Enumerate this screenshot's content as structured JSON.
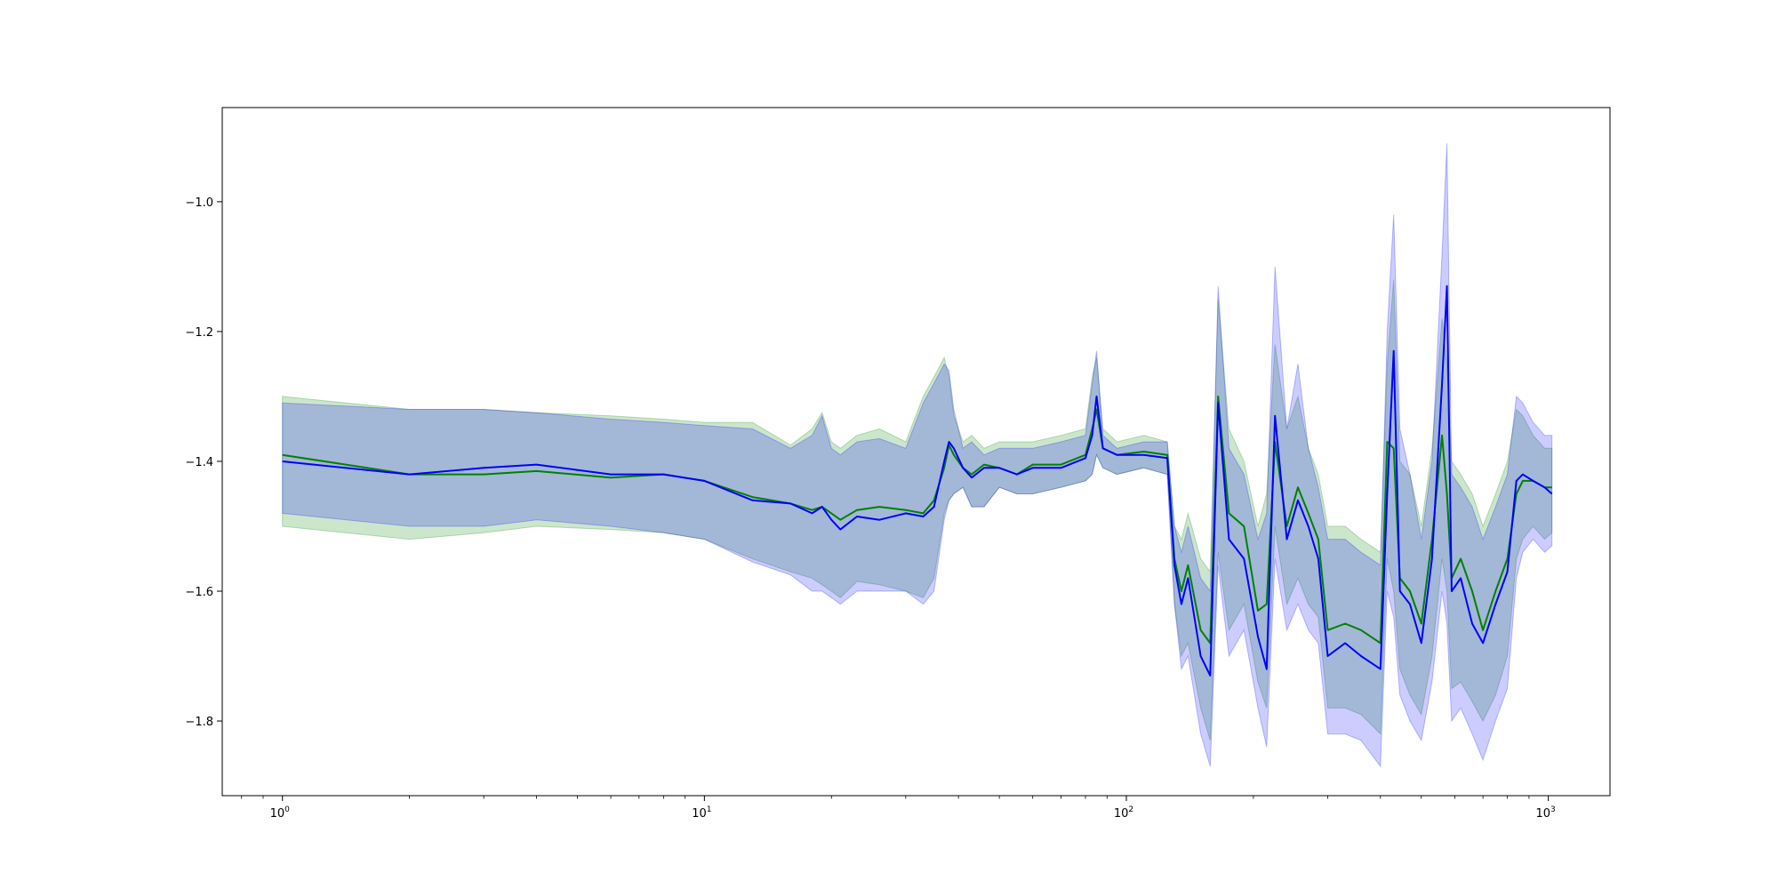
{
  "chart_data": {
    "type": "line",
    "title": "",
    "xlabel": "",
    "ylabel": "",
    "xscale": "log",
    "xlim": [
      0.72,
      1400
    ],
    "ylim": [
      -1.915,
      -0.855
    ],
    "grid": false,
    "legend": "none",
    "x_ticks": [
      {
        "value": 1,
        "base": "10",
        "exp": "0"
      },
      {
        "value": 10,
        "base": "10",
        "exp": "1"
      },
      {
        "value": 100,
        "base": "10",
        "exp": "2"
      },
      {
        "value": 1000,
        "base": "10",
        "exp": "3"
      }
    ],
    "y_ticks": [
      {
        "value": -1.8,
        "label": "−1.8"
      },
      {
        "value": -1.6,
        "label": "−1.6"
      },
      {
        "value": -1.4,
        "label": "−1.4"
      },
      {
        "value": -1.2,
        "label": "−1.2"
      },
      {
        "value": -1.0,
        "label": "−1.0"
      }
    ],
    "x": [
      1,
      2,
      3,
      4,
      6,
      8,
      10,
      13,
      16,
      18,
      19,
      20,
      21,
      23,
      26,
      30,
      33,
      35,
      37,
      38,
      39,
      41,
      43,
      46,
      50,
      55,
      60,
      70,
      80,
      83,
      85,
      88,
      95,
      110,
      125,
      130,
      135,
      140,
      150,
      158,
      165,
      175,
      190,
      205,
      215,
      225,
      240,
      255,
      270,
      285,
      300,
      330,
      360,
      400,
      415,
      430,
      445,
      470,
      500,
      530,
      560,
      575,
      590,
      620,
      660,
      700,
      750,
      800,
      840,
      870,
      920,
      980,
      1020
    ],
    "series": [
      {
        "color": "#008000",
        "band_color": "#008000",
        "values": [
          -1.39,
          -1.42,
          -1.42,
          -1.415,
          -1.425,
          -1.42,
          -1.43,
          -1.455,
          -1.465,
          -1.475,
          -1.47,
          -1.48,
          -1.49,
          -1.475,
          -1.47,
          -1.475,
          -1.48,
          -1.46,
          -1.41,
          -1.375,
          -1.39,
          -1.41,
          -1.42,
          -1.405,
          -1.41,
          -1.42,
          -1.405,
          -1.405,
          -1.39,
          -1.35,
          -1.32,
          -1.38,
          -1.39,
          -1.385,
          -1.39,
          -1.55,
          -1.6,
          -1.56,
          -1.66,
          -1.68,
          -1.3,
          -1.48,
          -1.5,
          -1.63,
          -1.62,
          -1.37,
          -1.5,
          -1.44,
          -1.48,
          -1.52,
          -1.66,
          -1.65,
          -1.66,
          -1.68,
          -1.37,
          -1.38,
          -1.58,
          -1.6,
          -1.65,
          -1.52,
          -1.36,
          -1.45,
          -1.58,
          -1.55,
          -1.6,
          -1.66,
          -1.6,
          -1.55,
          -1.45,
          -1.43,
          -1.43,
          -1.44,
          -1.44
        ],
        "upper": [
          -1.3,
          -1.32,
          -1.32,
          -1.325,
          -1.33,
          -1.335,
          -1.34,
          -1.34,
          -1.375,
          -1.35,
          -1.325,
          -1.37,
          -1.38,
          -1.36,
          -1.35,
          -1.37,
          -1.3,
          -1.27,
          -1.24,
          -1.27,
          -1.33,
          -1.37,
          -1.36,
          -1.38,
          -1.37,
          -1.37,
          -1.37,
          -1.36,
          -1.35,
          -1.27,
          -1.24,
          -1.35,
          -1.37,
          -1.36,
          -1.37,
          -1.5,
          -1.52,
          -1.48,
          -1.55,
          -1.57,
          -1.15,
          -1.35,
          -1.4,
          -1.5,
          -1.45,
          -1.22,
          -1.35,
          -1.3,
          -1.38,
          -1.42,
          -1.5,
          -1.5,
          -1.52,
          -1.54,
          -1.25,
          -1.12,
          -1.4,
          -1.42,
          -1.5,
          -1.38,
          -1.18,
          -1.25,
          -1.4,
          -1.42,
          -1.45,
          -1.5,
          -1.45,
          -1.4,
          -1.32,
          -1.33,
          -1.36,
          -1.38,
          -1.38
        ],
        "lower": [
          -1.5,
          -1.52,
          -1.51,
          -1.5,
          -1.505,
          -1.51,
          -1.52,
          -1.55,
          -1.57,
          -1.58,
          -1.59,
          -1.6,
          -1.61,
          -1.585,
          -1.59,
          -1.6,
          -1.61,
          -1.58,
          -1.48,
          -1.46,
          -1.45,
          -1.44,
          -1.47,
          -1.47,
          -1.44,
          -1.45,
          -1.45,
          -1.44,
          -1.43,
          -1.42,
          -1.39,
          -1.41,
          -1.42,
          -1.41,
          -1.42,
          -1.62,
          -1.7,
          -1.68,
          -1.78,
          -1.83,
          -1.54,
          -1.66,
          -1.62,
          -1.74,
          -1.78,
          -1.5,
          -1.62,
          -1.58,
          -1.62,
          -1.64,
          -1.78,
          -1.78,
          -1.79,
          -1.82,
          -1.55,
          -1.6,
          -1.72,
          -1.76,
          -1.79,
          -1.7,
          -1.55,
          -1.6,
          -1.75,
          -1.74,
          -1.77,
          -1.8,
          -1.76,
          -1.7,
          -1.55,
          -1.52,
          -1.5,
          -1.52,
          -1.51
        ]
      },
      {
        "color": "#0000ff",
        "band_color": "#0000ff",
        "values": [
          -1.4,
          -1.42,
          -1.41,
          -1.405,
          -1.42,
          -1.42,
          -1.43,
          -1.46,
          -1.465,
          -1.48,
          -1.47,
          -1.49,
          -1.505,
          -1.485,
          -1.49,
          -1.48,
          -1.485,
          -1.47,
          -1.4,
          -1.37,
          -1.38,
          -1.41,
          -1.425,
          -1.41,
          -1.41,
          -1.42,
          -1.41,
          -1.41,
          -1.395,
          -1.36,
          -1.3,
          -1.38,
          -1.39,
          -1.39,
          -1.395,
          -1.56,
          -1.62,
          -1.58,
          -1.7,
          -1.73,
          -1.31,
          -1.52,
          -1.55,
          -1.67,
          -1.72,
          -1.33,
          -1.52,
          -1.46,
          -1.5,
          -1.55,
          -1.7,
          -1.68,
          -1.7,
          -1.72,
          -1.45,
          -1.23,
          -1.6,
          -1.62,
          -1.68,
          -1.55,
          -1.28,
          -1.13,
          -1.6,
          -1.58,
          -1.65,
          -1.68,
          -1.62,
          -1.57,
          -1.43,
          -1.42,
          -1.43,
          -1.44,
          -1.45
        ],
        "upper": [
          -1.31,
          -1.32,
          -1.32,
          -1.325,
          -1.335,
          -1.34,
          -1.345,
          -1.35,
          -1.38,
          -1.36,
          -1.33,
          -1.38,
          -1.39,
          -1.37,
          -1.365,
          -1.38,
          -1.31,
          -1.28,
          -1.25,
          -1.26,
          -1.32,
          -1.38,
          -1.37,
          -1.39,
          -1.38,
          -1.38,
          -1.38,
          -1.37,
          -1.36,
          -1.28,
          -1.23,
          -1.36,
          -1.38,
          -1.37,
          -1.37,
          -1.5,
          -1.54,
          -1.5,
          -1.58,
          -1.6,
          -1.13,
          -1.38,
          -1.42,
          -1.52,
          -1.48,
          -1.1,
          -1.35,
          -1.25,
          -1.38,
          -1.44,
          -1.52,
          -1.52,
          -1.54,
          -1.56,
          -1.2,
          -1.02,
          -1.35,
          -1.42,
          -1.52,
          -1.4,
          -1.08,
          -0.91,
          -1.42,
          -1.44,
          -1.47,
          -1.52,
          -1.47,
          -1.42,
          -1.3,
          -1.31,
          -1.34,
          -1.36,
          -1.36
        ],
        "lower": [
          -1.48,
          -1.5,
          -1.5,
          -1.49,
          -1.5,
          -1.51,
          -1.52,
          -1.555,
          -1.575,
          -1.6,
          -1.6,
          -1.61,
          -1.62,
          -1.6,
          -1.6,
          -1.6,
          -1.62,
          -1.6,
          -1.49,
          -1.46,
          -1.45,
          -1.44,
          -1.47,
          -1.47,
          -1.44,
          -1.45,
          -1.45,
          -1.44,
          -1.43,
          -1.42,
          -1.39,
          -1.41,
          -1.42,
          -1.41,
          -1.42,
          -1.62,
          -1.72,
          -1.7,
          -1.82,
          -1.87,
          -1.56,
          -1.7,
          -1.66,
          -1.78,
          -1.84,
          -1.55,
          -1.66,
          -1.62,
          -1.66,
          -1.68,
          -1.82,
          -1.82,
          -1.83,
          -1.87,
          -1.6,
          -1.64,
          -1.76,
          -1.8,
          -1.83,
          -1.74,
          -1.6,
          -1.65,
          -1.8,
          -1.78,
          -1.82,
          -1.86,
          -1.8,
          -1.75,
          -1.58,
          -1.54,
          -1.52,
          -1.54,
          -1.53
        ]
      }
    ]
  }
}
